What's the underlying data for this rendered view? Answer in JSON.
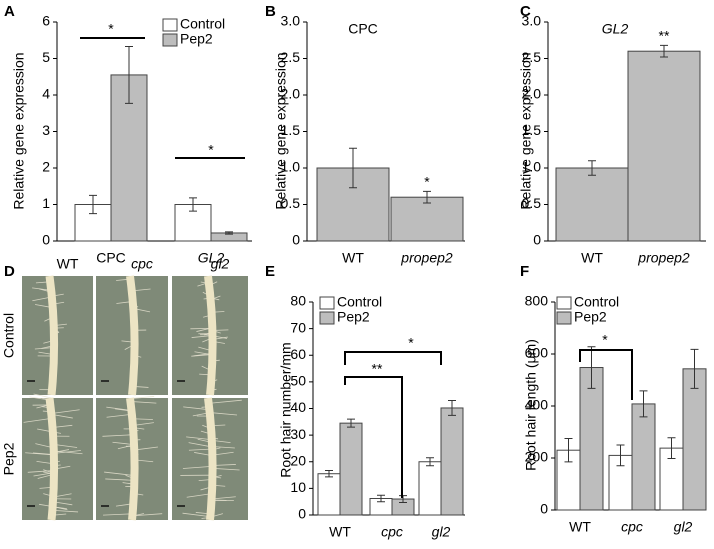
{
  "chart_data": [
    {
      "type": "bar",
      "panel": "A",
      "ylabel": "Relative gene expression",
      "categories": [
        "CPC",
        "GL2"
      ],
      "italic": [
        false,
        true
      ],
      "series": [
        {
          "name": "Control",
          "color": "#ffffff",
          "values": [
            1.0,
            1.0
          ],
          "errors": [
            0.25,
            0.18
          ]
        },
        {
          "name": "Pep2",
          "color": "#bdbdbd",
          "values": [
            4.55,
            0.22
          ],
          "errors": [
            0.78,
            0.03
          ]
        }
      ],
      "ylim": [
        0,
        6
      ],
      "yticks": [
        0,
        1,
        2,
        3,
        4,
        5,
        6
      ],
      "annotations": [
        "*",
        "*"
      ]
    },
    {
      "type": "bar",
      "panel": "B",
      "title": "CPC",
      "title_italic": false,
      "ylabel": "Relative gene expression",
      "categories": [
        "WT",
        "propep2"
      ],
      "italic": [
        false,
        true
      ],
      "values": [
        1.0,
        0.6
      ],
      "errors": [
        0.27,
        0.08
      ],
      "color": "#bdbdbd",
      "ylim": [
        0,
        3
      ],
      "yticks": [
        0,
        0.5,
        {
          "value": 1,
          "label": "1.0"
        },
        1.5,
        {
          "value": 2,
          "label": "2.0"
        },
        2.5,
        {
          "value": 3,
          "label": "3.0"
        }
      ],
      "annotations": [
        "*"
      ]
    },
    {
      "type": "bar",
      "panel": "C",
      "title": "GL2",
      "title_italic": true,
      "ylabel": "Relative gene expression",
      "categories": [
        "WT",
        "propep2"
      ],
      "italic": [
        false,
        true
      ],
      "values": [
        1.0,
        2.6
      ],
      "errors": [
        0.1,
        0.08
      ],
      "color": "#bdbdbd",
      "ylim": [
        0,
        3
      ],
      "yticks": [
        0,
        0.5,
        {
          "value": 1,
          "label": "1.0"
        },
        1.5,
        {
          "value": 2,
          "label": "2.0"
        },
        2.5,
        {
          "value": 3,
          "label": "3.0"
        }
      ],
      "annotations": [
        "**"
      ]
    },
    {
      "type": "image",
      "panel": "D",
      "columns": [
        "WT",
        "cpc",
        "gl2"
      ],
      "rows": [
        "Control",
        "Pep2"
      ]
    },
    {
      "type": "bar",
      "panel": "E",
      "ylabel": "Root hair number/mm",
      "categories": [
        "WT",
        "cpc",
        "gl2"
      ],
      "italic": [
        false,
        true,
        true
      ],
      "series": [
        {
          "name": "Control",
          "color": "#ffffff",
          "values": [
            15.5,
            6.2,
            20
          ],
          "errors": [
            1.2,
            1.2,
            1.5
          ]
        },
        {
          "name": "Pep2",
          "color": "#bdbdbd",
          "values": [
            34.5,
            6,
            40.2
          ],
          "errors": [
            1.5,
            1.3,
            2.8
          ]
        }
      ],
      "ylim": [
        0,
        80
      ],
      "yticks": [
        0,
        10,
        20,
        30,
        40,
        50,
        60,
        70,
        80
      ],
      "annotations": [
        "*",
        "**"
      ]
    },
    {
      "type": "bar",
      "panel": "F",
      "ylabel": "Root hair length (μm)",
      "categories": [
        "WT",
        "cpc",
        "gl2"
      ],
      "italic": [
        false,
        true,
        true
      ],
      "series": [
        {
          "name": "Control",
          "color": "#ffffff",
          "values": [
            230,
            210,
            238
          ],
          "errors": [
            45,
            40,
            40
          ]
        },
        {
          "name": "Pep2",
          "color": "#bdbdbd",
          "values": [
            548,
            408,
            543
          ],
          "errors": [
            80,
            50,
            75
          ]
        }
      ],
      "ylim": [
        0,
        800
      ],
      "yticks": [
        0,
        200,
        400,
        600,
        800
      ],
      "annotations": [
        "*"
      ]
    }
  ]
}
